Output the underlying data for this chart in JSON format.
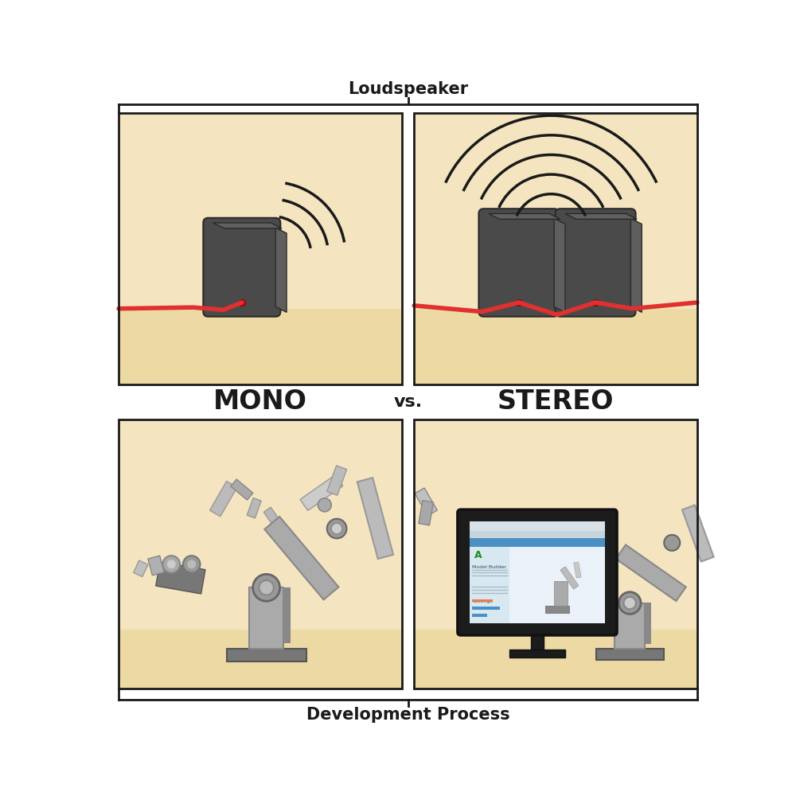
{
  "bg_color": "#FFFFFF",
  "panel_bg_top": "#F5E6C8",
  "panel_bg_floor": "#F0DEB8",
  "panel_bg_wall": "#F5E6C8",
  "border_color": "#1A1A1A",
  "speaker_body": "#4A4A4A",
  "speaker_side": "#3A3A3A",
  "speaker_top": "#5A5A5A",
  "wire_color": "#E03030",
  "sound_wave_color": "#1A1A1A",
  "robot_base_dark": "#888888",
  "robot_base_mid": "#999999",
  "robot_arm_light": "#C8C8C8",
  "robot_arm_mid": "#AAAAAA",
  "robot_arm_dark": "#888888",
  "title_top": "Loudspeaker",
  "title_bottom": "Development Process",
  "label_mono": "MONO",
  "label_vs": "vs.",
  "label_stereo": "STEREO"
}
